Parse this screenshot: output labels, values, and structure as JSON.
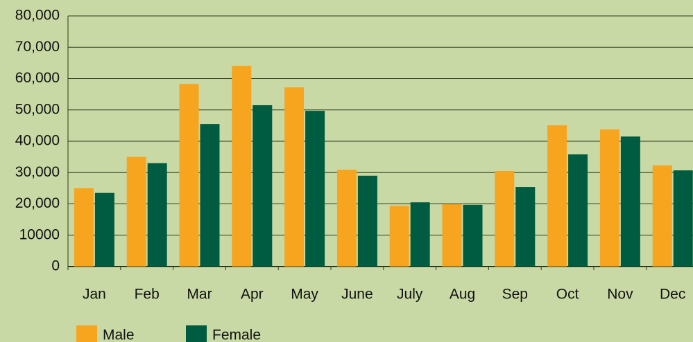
{
  "chart_data": {
    "type": "bar",
    "categories": [
      "Jan",
      "Feb",
      "Mar",
      "Apr",
      "May",
      "June",
      "July",
      "Aug",
      "Sep",
      "Oct",
      "Nov",
      "Dec"
    ],
    "series": [
      {
        "name": "Male",
        "color": "#f7a51f",
        "values": [
          25000,
          35000,
          58300,
          64100,
          57200,
          30900,
          19400,
          19900,
          30500,
          45100,
          43800,
          32300
        ]
      },
      {
        "name": "Female",
        "color": "#005c40",
        "values": [
          23500,
          33000,
          45500,
          51500,
          49700,
          29000,
          20500,
          19700,
          25400,
          35800,
          41500,
          30700
        ]
      }
    ],
    "ylim": [
      0,
      80000
    ],
    "yticks": [
      0,
      10000,
      {
        "value": 20000,
        "label": "20,000"
      },
      {
        "value": 30000,
        "label": "30,000"
      },
      {
        "value": 40000,
        "label": "40,000"
      },
      {
        "value": 50000,
        "label": "50,000"
      },
      {
        "value": 60000,
        "label": "60,000"
      },
      {
        "value": 70000,
        "label": "70,000"
      },
      {
        "value": 80000,
        "label": "80,000"
      }
    ],
    "grid": true,
    "legend": "bottom"
  }
}
